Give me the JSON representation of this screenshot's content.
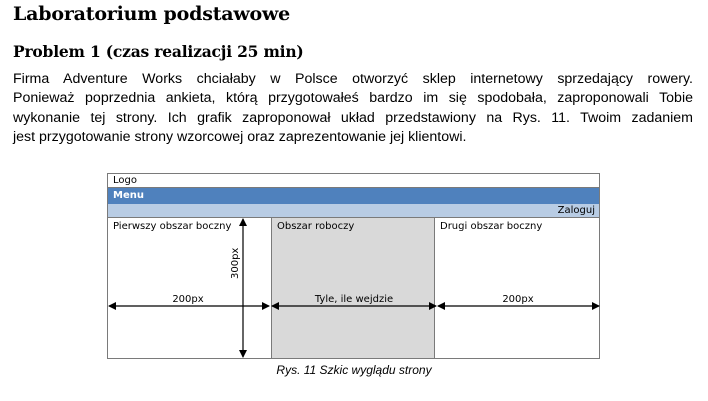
{
  "heading": "Laboratorium podstawowe",
  "problem_title": "Problem 1 (czas realizacji 25 min)",
  "paragraph_lines": [
    "Firma Adventure Works chciałaby w Polsce otworzyć sklep internetowy sprzedający rowery.",
    "Ponieważ poprzednia ankieta, którą przygotowałeś bardzo im się spodobała, zaproponowali Tobie",
    "wykonanie tej strony. Ich grafik zaproponował układ przedstawiony na Rys. 11. Twoim zadaniem",
    "jest przygotowanie strony wzorcowej oraz zaprezentowanie jej klientowi."
  ],
  "figure": {
    "logo": "Logo",
    "menu": "Menu",
    "login": "Zaloguj",
    "left_column": "Pierwszy obszar boczny",
    "main_column": "Obszar roboczy",
    "right_column": "Drugi obszar boczny",
    "height_dim": "300px",
    "left_width_dim": "200px",
    "main_width_dim": "Tyle, ile wejdzie",
    "right_width_dim": "200px",
    "colors": {
      "menu": "#4f81bd",
      "login_bar": "#b8cce4",
      "main_area": "#d9d9d9"
    }
  },
  "caption": "Rys. 11 Szkic wyglądu strony"
}
